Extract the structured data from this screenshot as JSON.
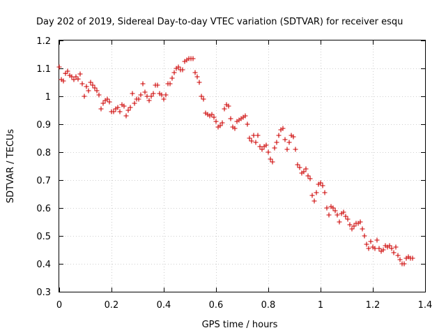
{
  "chart_data": {
    "type": "scatter",
    "title": "Day 202 of 2019, Sidereal Day-to-day VTEC variation (SDTVAR) for receiver esqu",
    "xlabel": "GPS time / hours",
    "ylabel": "SDTVAR / TECUs",
    "xlim": [
      0,
      1.4
    ],
    "ylim": [
      0.3,
      1.2
    ],
    "x_ticks": [
      0,
      0.2,
      0.4,
      0.6,
      0.8,
      1,
      1.2,
      1.4
    ],
    "x_tick_labels": [
      "0",
      "0.2",
      "0.4",
      "0.6",
      "0.8",
      "1",
      "1.2",
      "1.4"
    ],
    "y_ticks": [
      0.3,
      0.4,
      0.5,
      0.6,
      0.7,
      0.8,
      0.9,
      1,
      1.1,
      1.2
    ],
    "y_tick_labels": [
      "0.3",
      "0.4",
      "0.5",
      "0.6",
      "0.7",
      "0.8",
      "0.9",
      "1",
      "1.1",
      "1.2"
    ],
    "grid": true,
    "marker": "+",
    "color": "#cc0000",
    "series": [
      {
        "name": "SDTVAR",
        "points": [
          [
            0.0,
            1.105
          ],
          [
            0.008,
            1.06
          ],
          [
            0.016,
            1.055
          ],
          [
            0.024,
            1.082
          ],
          [
            0.032,
            1.09
          ],
          [
            0.04,
            1.075
          ],
          [
            0.048,
            1.07
          ],
          [
            0.056,
            1.06
          ],
          [
            0.064,
            1.07
          ],
          [
            0.072,
            1.062
          ],
          [
            0.08,
            1.08
          ],
          [
            0.088,
            1.045
          ],
          [
            0.096,
            1.0
          ],
          [
            0.104,
            1.035
          ],
          [
            0.112,
            1.02
          ],
          [
            0.12,
            1.05
          ],
          [
            0.128,
            1.04
          ],
          [
            0.136,
            1.03
          ],
          [
            0.144,
            1.02
          ],
          [
            0.152,
            1.005
          ],
          [
            0.16,
            0.955
          ],
          [
            0.168,
            0.975
          ],
          [
            0.176,
            0.985
          ],
          [
            0.184,
            0.99
          ],
          [
            0.192,
            0.98
          ],
          [
            0.2,
            0.945
          ],
          [
            0.208,
            0.945
          ],
          [
            0.216,
            0.955
          ],
          [
            0.224,
            0.96
          ],
          [
            0.232,
            0.945
          ],
          [
            0.24,
            0.97
          ],
          [
            0.248,
            0.965
          ],
          [
            0.256,
            0.93
          ],
          [
            0.264,
            0.95
          ],
          [
            0.272,
            0.96
          ],
          [
            0.28,
            1.01
          ],
          [
            0.288,
            0.975
          ],
          [
            0.296,
            0.99
          ],
          [
            0.304,
            0.99
          ],
          [
            0.312,
            1.005
          ],
          [
            0.32,
            1.045
          ],
          [
            0.328,
            1.015
          ],
          [
            0.336,
            1.0
          ],
          [
            0.344,
            0.985
          ],
          [
            0.352,
            1.0
          ],
          [
            0.36,
            1.01
          ],
          [
            0.368,
            1.04
          ],
          [
            0.376,
            1.04
          ],
          [
            0.384,
            1.01
          ],
          [
            0.392,
            1.005
          ],
          [
            0.4,
            0.99
          ],
          [
            0.408,
            1.005
          ],
          [
            0.416,
            1.045
          ],
          [
            0.424,
            1.045
          ],
          [
            0.432,
            1.065
          ],
          [
            0.44,
            1.085
          ],
          [
            0.448,
            1.1
          ],
          [
            0.456,
            1.105
          ],
          [
            0.464,
            1.095
          ],
          [
            0.472,
            1.095
          ],
          [
            0.48,
            1.125
          ],
          [
            0.488,
            1.13
          ],
          [
            0.496,
            1.135
          ],
          [
            0.504,
            1.135
          ],
          [
            0.512,
            1.135
          ],
          [
            0.52,
            1.085
          ],
          [
            0.528,
            1.07
          ],
          [
            0.536,
            1.05
          ],
          [
            0.544,
            1.0
          ],
          [
            0.552,
            0.99
          ],
          [
            0.56,
            0.94
          ],
          [
            0.568,
            0.935
          ],
          [
            0.576,
            0.93
          ],
          [
            0.584,
            0.935
          ],
          [
            0.592,
            0.925
          ],
          [
            0.6,
            0.91
          ],
          [
            0.608,
            0.89
          ],
          [
            0.616,
            0.895
          ],
          [
            0.624,
            0.905
          ],
          [
            0.632,
            0.955
          ],
          [
            0.64,
            0.97
          ],
          [
            0.648,
            0.965
          ],
          [
            0.656,
            0.92
          ],
          [
            0.664,
            0.89
          ],
          [
            0.672,
            0.885
          ],
          [
            0.68,
            0.91
          ],
          [
            0.688,
            0.915
          ],
          [
            0.696,
            0.92
          ],
          [
            0.704,
            0.925
          ],
          [
            0.712,
            0.93
          ],
          [
            0.72,
            0.9
          ],
          [
            0.728,
            0.85
          ],
          [
            0.736,
            0.84
          ],
          [
            0.744,
            0.86
          ],
          [
            0.752,
            0.835
          ],
          [
            0.76,
            0.86
          ],
          [
            0.768,
            0.82
          ],
          [
            0.776,
            0.81
          ],
          [
            0.784,
            0.82
          ],
          [
            0.792,
            0.825
          ],
          [
            0.8,
            0.8
          ],
          [
            0.808,
            0.775
          ],
          [
            0.816,
            0.765
          ],
          [
            0.824,
            0.815
          ],
          [
            0.832,
            0.835
          ],
          [
            0.84,
            0.86
          ],
          [
            0.848,
            0.88
          ],
          [
            0.856,
            0.885
          ],
          [
            0.864,
            0.845
          ],
          [
            0.872,
            0.81
          ],
          [
            0.88,
            0.835
          ],
          [
            0.888,
            0.86
          ],
          [
            0.896,
            0.855
          ],
          [
            0.904,
            0.81
          ],
          [
            0.912,
            0.755
          ],
          [
            0.92,
            0.745
          ],
          [
            0.928,
            0.725
          ],
          [
            0.936,
            0.73
          ],
          [
            0.944,
            0.74
          ],
          [
            0.952,
            0.715
          ],
          [
            0.96,
            0.705
          ],
          [
            0.968,
            0.645
          ],
          [
            0.976,
            0.625
          ],
          [
            0.984,
            0.655
          ],
          [
            0.992,
            0.685
          ],
          [
            1.0,
            0.69
          ],
          [
            1.008,
            0.68
          ],
          [
            1.016,
            0.655
          ],
          [
            1.024,
            0.6
          ],
          [
            1.032,
            0.575
          ],
          [
            1.04,
            0.605
          ],
          [
            1.048,
            0.6
          ],
          [
            1.056,
            0.59
          ],
          [
            1.064,
            0.575
          ],
          [
            1.072,
            0.55
          ],
          [
            1.08,
            0.58
          ],
          [
            1.088,
            0.585
          ],
          [
            1.096,
            0.57
          ],
          [
            1.104,
            0.56
          ],
          [
            1.112,
            0.54
          ],
          [
            1.12,
            0.525
          ],
          [
            1.128,
            0.535
          ],
          [
            1.136,
            0.545
          ],
          [
            1.144,
            0.545
          ],
          [
            1.152,
            0.55
          ],
          [
            1.16,
            0.525
          ],
          [
            1.168,
            0.5
          ],
          [
            1.176,
            0.47
          ],
          [
            1.184,
            0.455
          ],
          [
            1.192,
            0.48
          ],
          [
            1.2,
            0.46
          ],
          [
            1.208,
            0.455
          ],
          [
            1.216,
            0.485
          ],
          [
            1.224,
            0.455
          ],
          [
            1.232,
            0.445
          ],
          [
            1.24,
            0.45
          ],
          [
            1.248,
            0.465
          ],
          [
            1.256,
            0.46
          ],
          [
            1.264,
            0.465
          ],
          [
            1.272,
            0.455
          ],
          [
            1.28,
            0.44
          ],
          [
            1.288,
            0.46
          ],
          [
            1.296,
            0.43
          ],
          [
            1.304,
            0.415
          ],
          [
            1.312,
            0.4
          ],
          [
            1.32,
            0.4
          ],
          [
            1.328,
            0.42
          ],
          [
            1.336,
            0.425
          ],
          [
            1.344,
            0.42
          ],
          [
            1.352,
            0.42
          ]
        ]
      }
    ]
  }
}
